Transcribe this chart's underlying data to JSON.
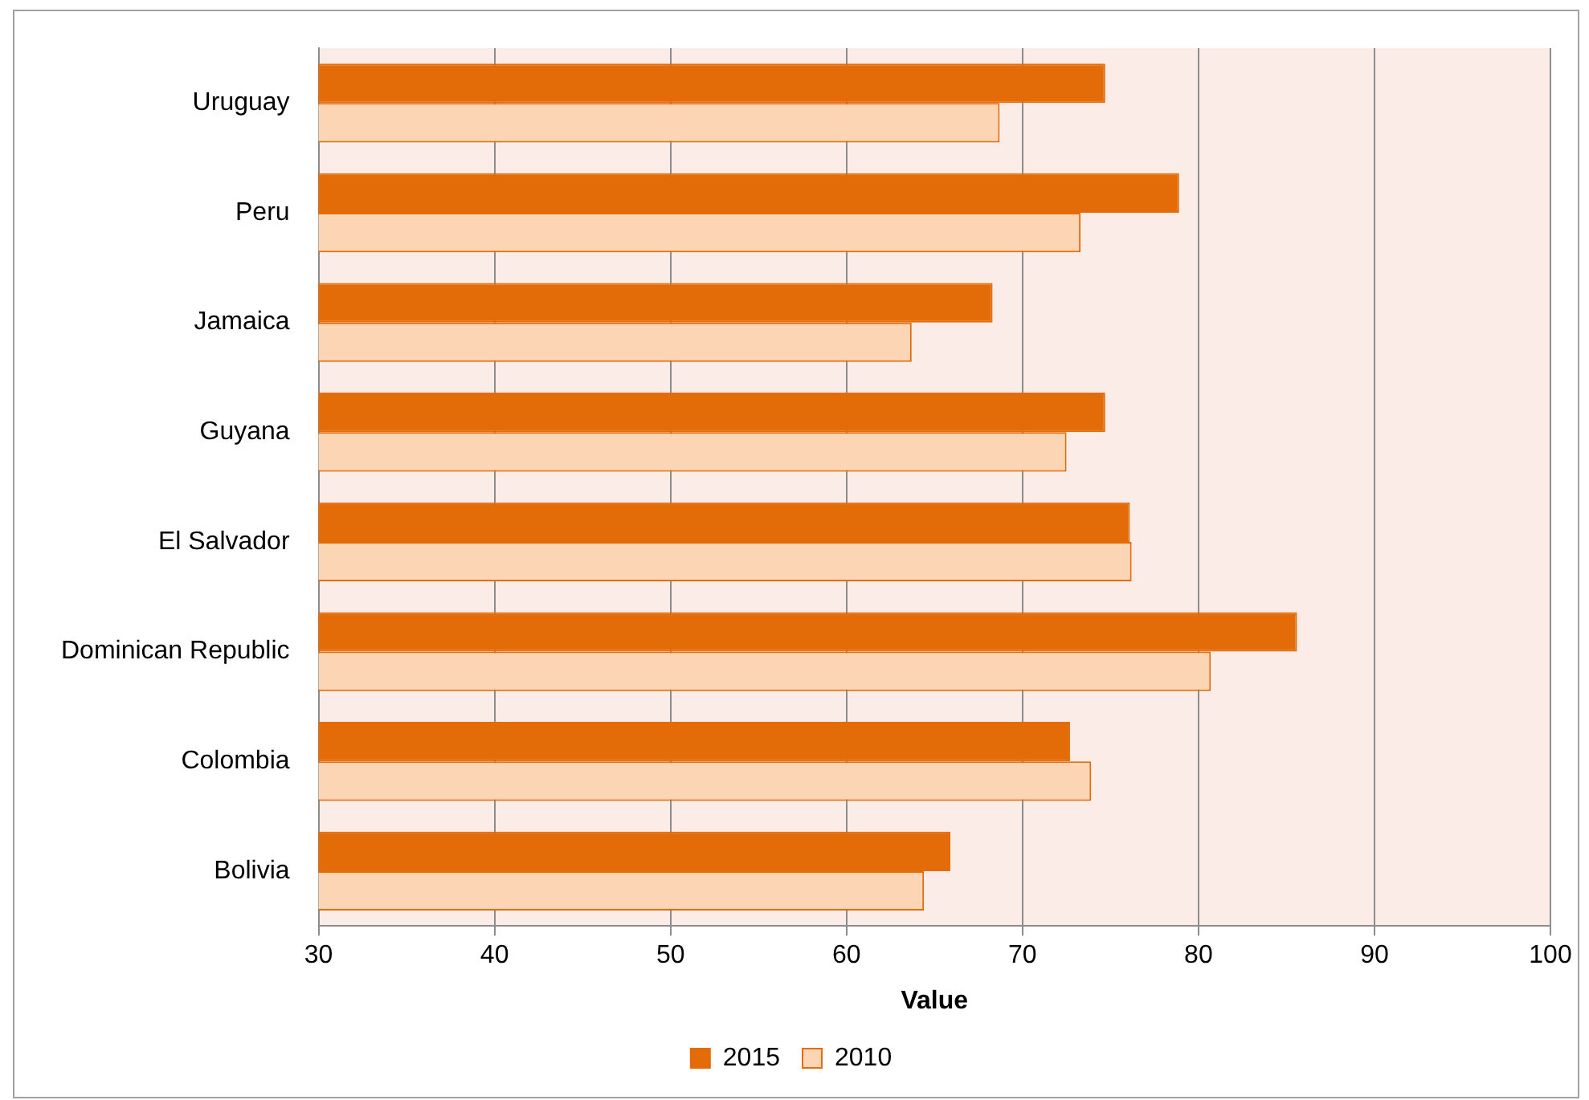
{
  "chart_data": {
    "type": "bar",
    "orientation": "horizontal",
    "xlabel": "Value",
    "categories": [
      "Uruguay",
      "Peru",
      "Jamaica",
      "Guyana",
      "El Salvador",
      "Dominican Republic",
      "Colombia",
      "Bolivia"
    ],
    "series": [
      {
        "name": "2015",
        "color": "#e36c09",
        "values": [
          74.7,
          78.9,
          68.3,
          74.7,
          76.1,
          85.6,
          72.7,
          65.9
        ]
      },
      {
        "name": "2010",
        "color": "#fcd5b5",
        "values": [
          68.7,
          73.3,
          63.7,
          72.5,
          76.2,
          80.7,
          73.9,
          64.4
        ]
      }
    ],
    "xlim": [
      30,
      100
    ],
    "xticks": [
      30,
      40,
      50,
      60,
      70,
      80,
      90,
      100
    ],
    "grid": "x",
    "legend": "bottom"
  }
}
